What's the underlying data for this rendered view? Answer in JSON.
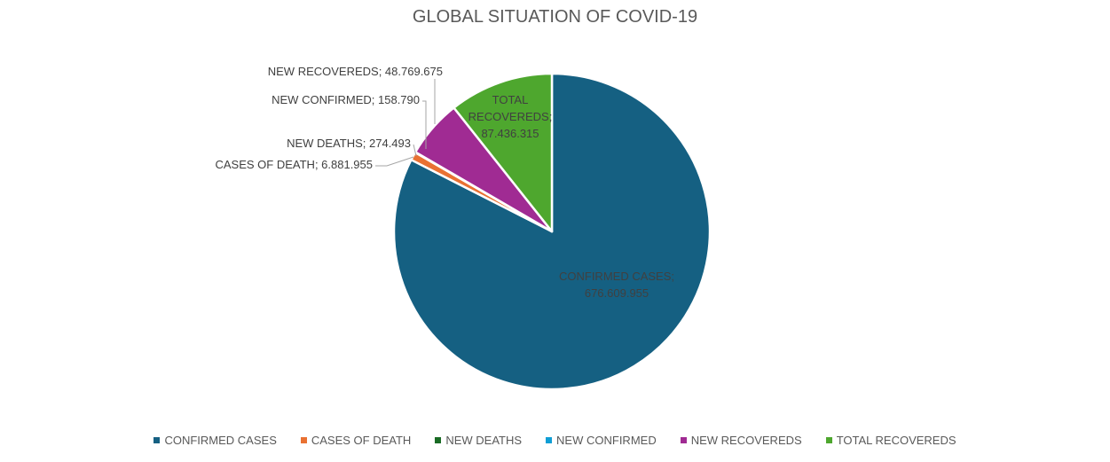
{
  "chart_data": {
    "type": "pie",
    "title": "GLOBAL SITUATION OF COVID-19",
    "categories": [
      "CONFIRMED CASES",
      "CASES OF DEATH",
      "NEW DEATHS",
      "NEW CONFIRMED",
      "NEW RECOVEREDS",
      "TOTAL RECOVEREDS"
    ],
    "values": [
      676609955,
      6881955,
      274493,
      158790,
      48769675,
      87436315
    ],
    "display_values": [
      "676.609.955",
      "6.881.955",
      "274.493",
      "158.790",
      "48.769.675",
      "87.436.315"
    ],
    "colors": [
      "#156082",
      "#e97132",
      "#196b24",
      "#0f9ed5",
      "#a02b93",
      "#4ea72e"
    ],
    "legend_position": "bottom",
    "data_labels": [
      {
        "text": "CONFIRMED CASES; 676.609.955",
        "lines": [
          "CONFIRMED CASES;",
          "676.609.955"
        ]
      },
      {
        "text": "CASES OF DEATH; 6.881.955",
        "lines": [
          "CASES OF DEATH; 6.881.955"
        ]
      },
      {
        "text": "NEW DEATHS; 274.493",
        "lines": [
          "NEW DEATHS; 274.493"
        ]
      },
      {
        "text": "NEW CONFIRMED; 158.790",
        "lines": [
          "NEW CONFIRMED; 158.790"
        ]
      },
      {
        "text": "NEW RECOVEREDS; 48.769.675",
        "lines": [
          "NEW RECOVEREDS; 48.769.675"
        ]
      },
      {
        "text": "TOTAL RECOVEREDS; 87.436.315",
        "lines": [
          "TOTAL",
          "RECOVEREDS;",
          "87.436.315"
        ]
      }
    ]
  }
}
